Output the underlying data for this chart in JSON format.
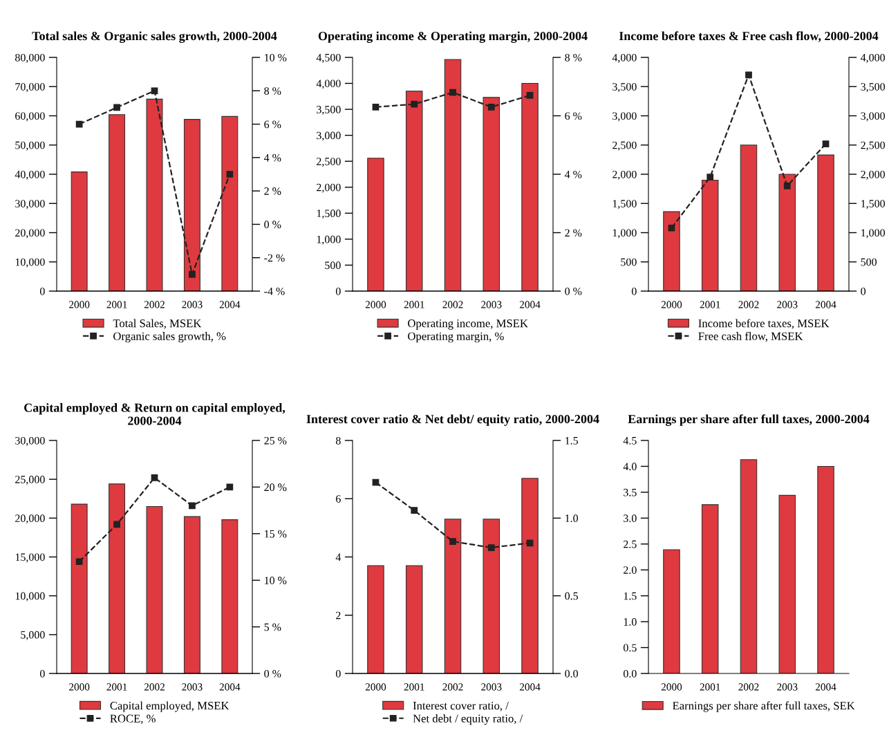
{
  "chart_data": [
    {
      "type": "bar",
      "title": "Total sales & Organic sales growth, 2000-2004",
      "categories": [
        "2000",
        "2001",
        "2002",
        "2003",
        "2004"
      ],
      "series": [
        {
          "name": "Total Sales, MSEK",
          "color": "#de3a3f",
          "values": [
            40800,
            60400,
            65700,
            58800,
            59800
          ]
        },
        {
          "name": "Organic sales growth, %",
          "color": "#222222",
          "type": "line",
          "axis": "y2",
          "marker": "square",
          "line_style": "dashed",
          "values": [
            6,
            7,
            8,
            -3,
            3
          ]
        }
      ],
      "ylim": [
        0,
        80000
      ],
      "yticks": [
        {
          "value": 0,
          "label": "0"
        },
        {
          "value": 10000,
          "label": "10,000"
        },
        {
          "value": 20000,
          "label": "20,000"
        },
        {
          "value": 30000,
          "label": "30,000"
        },
        {
          "value": 40000,
          "label": "40,000"
        },
        {
          "value": 50000,
          "label": "50,000"
        },
        {
          "value": 60000,
          "label": "60,000"
        },
        {
          "value": 70000,
          "label": "70,000"
        },
        {
          "value": 80000,
          "label": "80,000"
        }
      ],
      "y2lim": [
        -4,
        10
      ],
      "y2ticks": [
        {
          "value": -4,
          "label": "-4 %"
        },
        {
          "value": -2,
          "label": "-2 %"
        },
        {
          "value": 0,
          "label": "0 %"
        },
        {
          "value": 2,
          "label": "2 %"
        },
        {
          "value": 4,
          "label": "4 %"
        },
        {
          "value": 6,
          "label": "6 %"
        },
        {
          "value": 8,
          "label": "8 %"
        },
        {
          "value": 10,
          "label": "10 %"
        }
      ],
      "legend": "bottom",
      "grid": false
    },
    {
      "type": "bar",
      "title": "Operating income & Operating margin, 2000-2004",
      "categories": [
        "2000",
        "2001",
        "2002",
        "2003",
        "2004"
      ],
      "series": [
        {
          "name": "Operating income, MSEK",
          "color": "#de3a3f",
          "values": [
            2560,
            3850,
            4460,
            3730,
            4000
          ]
        },
        {
          "name": "Operating margin, %",
          "color": "#222222",
          "type": "line",
          "axis": "y2",
          "marker": "square",
          "line_style": "dashed",
          "values": [
            6.3,
            6.4,
            6.8,
            6.3,
            6.7
          ]
        }
      ],
      "ylim": [
        0,
        4500
      ],
      "yticks": [
        0,
        500,
        {
          "value": 1000,
          "label": "1,000"
        },
        {
          "value": 1500,
          "label": "1,500"
        },
        {
          "value": 2000,
          "label": "2,000"
        },
        {
          "value": 2500,
          "label": "2,500"
        },
        {
          "value": 3000,
          "label": "3,000"
        },
        {
          "value": 3500,
          "label": "3,500"
        },
        {
          "value": 4000,
          "label": "4,000"
        },
        {
          "value": 4500,
          "label": "4,500"
        }
      ],
      "y2lim": [
        0,
        8
      ],
      "y2ticks": [
        {
          "value": 0,
          "label": "0 %"
        },
        {
          "value": 2,
          "label": "2 %"
        },
        {
          "value": 4,
          "label": "4 %"
        },
        {
          "value": 6,
          "label": "6 %"
        },
        {
          "value": 8,
          "label": "8 %"
        }
      ],
      "legend": "bottom",
      "grid": false
    },
    {
      "type": "bar",
      "title": "Income before taxes & Free cash flow, 2000-2004",
      "categories": [
        "2000",
        "2001",
        "2002",
        "2003",
        "2004"
      ],
      "series": [
        {
          "name": "Income before taxes, MSEK",
          "color": "#de3a3f",
          "values": [
            1360,
            1900,
            2500,
            2000,
            2330
          ]
        },
        {
          "name": "Free cash flow, MSEK",
          "color": "#222222",
          "type": "line",
          "axis": "y2",
          "marker": "square",
          "line_style": "dashed",
          "values": [
            1080,
            1950,
            3700,
            1800,
            2520
          ]
        }
      ],
      "ylim": [
        0,
        4000
      ],
      "yticks": [
        0,
        500,
        {
          "value": 1000,
          "label": "1,000"
        },
        {
          "value": 1500,
          "label": "1,500"
        },
        {
          "value": 2000,
          "label": "2,000"
        },
        {
          "value": 2500,
          "label": "2,500"
        },
        {
          "value": 3000,
          "label": "3,000"
        },
        {
          "value": 3500,
          "label": "3,500"
        },
        {
          "value": 4000,
          "label": "4,000"
        }
      ],
      "y2lim": [
        0,
        4000
      ],
      "y2ticks": [
        0,
        500,
        {
          "value": 1000,
          "label": "1,000"
        },
        {
          "value": 1500,
          "label": "1,500"
        },
        {
          "value": 2000,
          "label": "2,000"
        },
        {
          "value": 2500,
          "label": "2,500"
        },
        {
          "value": 3000,
          "label": "3,000"
        },
        {
          "value": 3500,
          "label": "3,500"
        },
        {
          "value": 4000,
          "label": "4,000"
        }
      ],
      "legend": "bottom",
      "grid": false
    },
    {
      "type": "bar",
      "title": "Capital employed & Return on capital employed, 2000-2004",
      "categories": [
        "2000",
        "2001",
        "2002",
        "2003",
        "2004"
      ],
      "series": [
        {
          "name": "Capital employed, MSEK",
          "color": "#de3a3f",
          "values": [
            21800,
            24400,
            21500,
            20200,
            19800
          ]
        },
        {
          "name": "ROCE, %",
          "color": "#222222",
          "type": "line",
          "axis": "y2",
          "marker": "square",
          "line_style": "dashed",
          "values": [
            12,
            16,
            21,
            18,
            20
          ]
        }
      ],
      "ylim": [
        0,
        30000
      ],
      "yticks": [
        0,
        {
          "value": 5000,
          "label": "5,000"
        },
        {
          "value": 10000,
          "label": "10,000"
        },
        {
          "value": 15000,
          "label": "15,000"
        },
        {
          "value": 20000,
          "label": "20,000"
        },
        {
          "value": 25000,
          "label": "25,000"
        },
        {
          "value": 30000,
          "label": "30,000"
        }
      ],
      "y2lim": [
        0,
        25
      ],
      "y2ticks": [
        {
          "value": 0,
          "label": "0 %"
        },
        {
          "value": 5,
          "label": "5 %"
        },
        {
          "value": 10,
          "label": "10 %"
        },
        {
          "value": 15,
          "label": "15 %"
        },
        {
          "value": 20,
          "label": "20 %"
        },
        {
          "value": 25,
          "label": "25 %"
        }
      ],
      "legend": "bottom",
      "grid": false
    },
    {
      "type": "bar",
      "title": "Interest cover ratio & Net debt/ equity ratio, 2000-2004",
      "categories": [
        "2000",
        "2001",
        "2002",
        "2003",
        "2004"
      ],
      "series": [
        {
          "name": "Interest cover ratio, /",
          "color": "#de3a3f",
          "values": [
            3.7,
            3.7,
            5.3,
            5.3,
            6.7
          ]
        },
        {
          "name": "Net debt / equity ratio, /",
          "color": "#222222",
          "type": "line",
          "axis": "y2",
          "marker": "square",
          "line_style": "dashed",
          "values": [
            1.23,
            1.05,
            0.85,
            0.81,
            0.84
          ]
        }
      ],
      "ylim": [
        0,
        8
      ],
      "yticks": [
        0,
        2,
        4,
        6,
        8
      ],
      "y2lim": [
        0,
        1.5
      ],
      "y2ticks": [
        {
          "value": 0,
          "label": "0.0"
        },
        0.5,
        {
          "value": 1,
          "label": "1.0"
        },
        1.5
      ],
      "legend": "bottom",
      "grid": false
    },
    {
      "type": "bar",
      "title": "Earnings per share after full taxes, 2000-2004",
      "categories": [
        "2000",
        "2001",
        "2002",
        "2003",
        "2004"
      ],
      "series": [
        {
          "name": "Earnings per share after full taxes, SEK",
          "color": "#de3a3f",
          "values": [
            2.39,
            3.26,
            4.13,
            3.44,
            4.0
          ]
        }
      ],
      "ylim": [
        0,
        4.5
      ],
      "yticks": [
        {
          "value": 0,
          "label": "0.0"
        },
        0.5,
        {
          "value": 1,
          "label": "1.0"
        },
        1.5,
        {
          "value": 2,
          "label": "2.0"
        },
        2.5,
        {
          "value": 3,
          "label": "3.0"
        },
        3.5,
        {
          "value": 4,
          "label": "4.0"
        },
        4.5
      ],
      "legend": "bottom",
      "grid": false
    }
  ]
}
